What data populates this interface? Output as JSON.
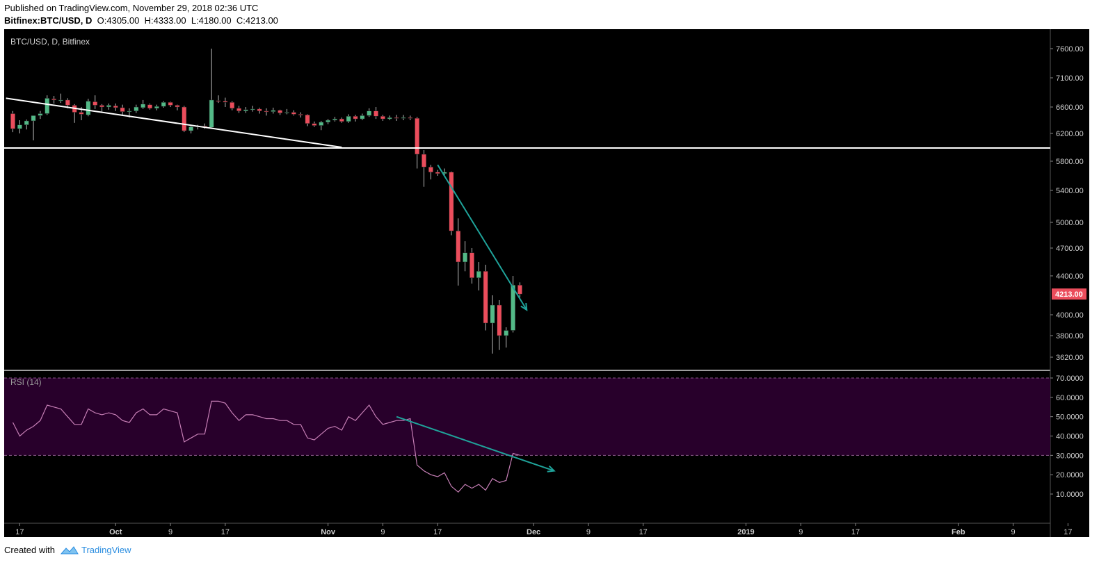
{
  "header": {
    "published": "Published on TradingView.com, November 29, 2018 02:36 UTC",
    "symbol": "Bitfinex:BTC/USD, D",
    "o_label": "O:",
    "o_value": "4305.00",
    "h_label": "H:",
    "h_value": "4333.00",
    "l_label": "L:",
    "l_value": "4180.00",
    "c_label": "C:",
    "c_value": "4213.00"
  },
  "footer": {
    "created_with": "Created with",
    "brand": "TradingView"
  },
  "colors": {
    "background": "#000000",
    "up": "#53b987",
    "down": "#eb4d5c",
    "rsi_band": "#28002b",
    "rsi_line": "#c77fb6",
    "trend_teal": "#1fa39a",
    "price_tag": "#eb4d5c",
    "axis_text": "#d0d0d0"
  },
  "chart_data": [
    {
      "type": "candlestick",
      "title": "BTC/USD, D, Bitfinex",
      "y_ticks": [
        "7600.00",
        "7100.00",
        "6600.00",
        "6200.00",
        "5800.00",
        "5400.00",
        "5000.00",
        "4700.00",
        "4400.00",
        "4000.00",
        "3800.00",
        "3620.00"
      ],
      "ylim": [
        3500,
        7750
      ],
      "last_price": "4213.00",
      "x_ticks": [
        "17",
        "Oct",
        "9",
        "17",
        "Nov",
        "9",
        "17",
        "Dec",
        "9",
        "17",
        "2019",
        "9",
        "17",
        "Feb",
        "9",
        "17"
      ],
      "candles": [
        {
          "date": "2018-09-16",
          "o": 6500,
          "h": 6540,
          "l": 6220,
          "c": 6270
        },
        {
          "date": "2018-09-17",
          "o": 6270,
          "h": 6400,
          "l": 6200,
          "c": 6330
        },
        {
          "date": "2018-09-18",
          "o": 6330,
          "h": 6410,
          "l": 6260,
          "c": 6390
        },
        {
          "date": "2018-09-19",
          "o": 6390,
          "h": 6440,
          "l": 6100,
          "c": 6470
        },
        {
          "date": "2018-09-20",
          "o": 6470,
          "h": 6540,
          "l": 6420,
          "c": 6500
        },
        {
          "date": "2018-09-21",
          "o": 6500,
          "h": 6800,
          "l": 6480,
          "c": 6750
        },
        {
          "date": "2018-09-22",
          "o": 6740,
          "h": 6790,
          "l": 6660,
          "c": 6720
        },
        {
          "date": "2018-09-23",
          "o": 6710,
          "h": 6830,
          "l": 6670,
          "c": 6720
        },
        {
          "date": "2018-09-24",
          "o": 6720,
          "h": 6750,
          "l": 6580,
          "c": 6630
        },
        {
          "date": "2018-09-25",
          "o": 6630,
          "h": 6650,
          "l": 6360,
          "c": 6520
        },
        {
          "date": "2018-09-26",
          "o": 6520,
          "h": 6600,
          "l": 6400,
          "c": 6490
        },
        {
          "date": "2018-09-27",
          "o": 6480,
          "h": 6740,
          "l": 6460,
          "c": 6700
        },
        {
          "date": "2018-09-28",
          "o": 6690,
          "h": 6800,
          "l": 6570,
          "c": 6630
        },
        {
          "date": "2018-09-29",
          "o": 6630,
          "h": 6650,
          "l": 6530,
          "c": 6600
        },
        {
          "date": "2018-09-30",
          "o": 6600,
          "h": 6660,
          "l": 6560,
          "c": 6630
        },
        {
          "date": "2018-10-01",
          "o": 6620,
          "h": 6660,
          "l": 6540,
          "c": 6590
        },
        {
          "date": "2018-10-02",
          "o": 6590,
          "h": 6640,
          "l": 6480,
          "c": 6530
        },
        {
          "date": "2018-10-03",
          "o": 6530,
          "h": 6580,
          "l": 6440,
          "c": 6540
        },
        {
          "date": "2018-10-04",
          "o": 6540,
          "h": 6640,
          "l": 6510,
          "c": 6600
        },
        {
          "date": "2018-10-05",
          "o": 6590,
          "h": 6720,
          "l": 6570,
          "c": 6650
        },
        {
          "date": "2018-10-06",
          "o": 6640,
          "h": 6660,
          "l": 6560,
          "c": 6580
        },
        {
          "date": "2018-10-07",
          "o": 6580,
          "h": 6640,
          "l": 6550,
          "c": 6610
        },
        {
          "date": "2018-10-08",
          "o": 6610,
          "h": 6700,
          "l": 6590,
          "c": 6680
        },
        {
          "date": "2018-10-09",
          "o": 6680,
          "h": 6690,
          "l": 6600,
          "c": 6630
        },
        {
          "date": "2018-10-10",
          "o": 6630,
          "h": 6640,
          "l": 6550,
          "c": 6600
        },
        {
          "date": "2018-10-11",
          "o": 6600,
          "h": 6620,
          "l": 6220,
          "c": 6240
        },
        {
          "date": "2018-10-12",
          "o": 6240,
          "h": 6320,
          "l": 6200,
          "c": 6300
        },
        {
          "date": "2018-10-13",
          "o": 6300,
          "h": 6330,
          "l": 6260,
          "c": 6310
        },
        {
          "date": "2018-10-14",
          "o": 6310,
          "h": 6350,
          "l": 6270,
          "c": 6290
        },
        {
          "date": "2018-10-15",
          "o": 6290,
          "h": 7600,
          "l": 6280,
          "c": 6720
        },
        {
          "date": "2018-10-16",
          "o": 6710,
          "h": 6800,
          "l": 6670,
          "c": 6700
        },
        {
          "date": "2018-10-17",
          "o": 6700,
          "h": 6760,
          "l": 6600,
          "c": 6680
        },
        {
          "date": "2018-10-18",
          "o": 6680,
          "h": 6700,
          "l": 6550,
          "c": 6580
        },
        {
          "date": "2018-10-19",
          "o": 6580,
          "h": 6620,
          "l": 6510,
          "c": 6540
        },
        {
          "date": "2018-10-20",
          "o": 6540,
          "h": 6600,
          "l": 6510,
          "c": 6560
        },
        {
          "date": "2018-10-21",
          "o": 6560,
          "h": 6620,
          "l": 6530,
          "c": 6570
        },
        {
          "date": "2018-10-22",
          "o": 6570,
          "h": 6590,
          "l": 6500,
          "c": 6540
        },
        {
          "date": "2018-10-23",
          "o": 6540,
          "h": 6580,
          "l": 6470,
          "c": 6530
        },
        {
          "date": "2018-10-24",
          "o": 6530,
          "h": 6590,
          "l": 6500,
          "c": 6550
        },
        {
          "date": "2018-10-25",
          "o": 6550,
          "h": 6560,
          "l": 6480,
          "c": 6510
        },
        {
          "date": "2018-10-26",
          "o": 6510,
          "h": 6570,
          "l": 6490,
          "c": 6520
        },
        {
          "date": "2018-10-27",
          "o": 6520,
          "h": 6550,
          "l": 6470,
          "c": 6490
        },
        {
          "date": "2018-10-28",
          "o": 6490,
          "h": 6520,
          "l": 6440,
          "c": 6480
        },
        {
          "date": "2018-10-29",
          "o": 6480,
          "h": 6490,
          "l": 6310,
          "c": 6350
        },
        {
          "date": "2018-10-30",
          "o": 6350,
          "h": 6380,
          "l": 6300,
          "c": 6320
        },
        {
          "date": "2018-10-31",
          "o": 6320,
          "h": 6390,
          "l": 6250,
          "c": 6370
        },
        {
          "date": "2018-11-01",
          "o": 6370,
          "h": 6420,
          "l": 6340,
          "c": 6400
        },
        {
          "date": "2018-11-02",
          "o": 6400,
          "h": 6450,
          "l": 6380,
          "c": 6420
        },
        {
          "date": "2018-11-03",
          "o": 6420,
          "h": 6440,
          "l": 6360,
          "c": 6380
        },
        {
          "date": "2018-11-04",
          "o": 6380,
          "h": 6490,
          "l": 6360,
          "c": 6460
        },
        {
          "date": "2018-11-05",
          "o": 6460,
          "h": 6480,
          "l": 6380,
          "c": 6420
        },
        {
          "date": "2018-11-06",
          "o": 6420,
          "h": 6500,
          "l": 6400,
          "c": 6470
        },
        {
          "date": "2018-11-07",
          "o": 6470,
          "h": 6580,
          "l": 6450,
          "c": 6540
        },
        {
          "date": "2018-11-08",
          "o": 6540,
          "h": 6600,
          "l": 6420,
          "c": 6460
        },
        {
          "date": "2018-11-09",
          "o": 6460,
          "h": 6480,
          "l": 6390,
          "c": 6420
        },
        {
          "date": "2018-11-10",
          "o": 6420,
          "h": 6470,
          "l": 6400,
          "c": 6440
        },
        {
          "date": "2018-11-11",
          "o": 6440,
          "h": 6480,
          "l": 6390,
          "c": 6430
        },
        {
          "date": "2018-11-12",
          "o": 6430,
          "h": 6480,
          "l": 6400,
          "c": 6440
        },
        {
          "date": "2018-11-13",
          "o": 6440,
          "h": 6470,
          "l": 6400,
          "c": 6430
        },
        {
          "date": "2018-11-14",
          "o": 6430,
          "h": 6450,
          "l": 5700,
          "c": 5900
        },
        {
          "date": "2018-11-15",
          "o": 5900,
          "h": 5960,
          "l": 5450,
          "c": 5720
        },
        {
          "date": "2018-11-16",
          "o": 5720,
          "h": 5750,
          "l": 5550,
          "c": 5650
        },
        {
          "date": "2018-11-17",
          "o": 5650,
          "h": 5680,
          "l": 5600,
          "c": 5630
        },
        {
          "date": "2018-11-18",
          "o": 5630,
          "h": 5700,
          "l": 5610,
          "c": 5650
        },
        {
          "date": "2018-11-19",
          "o": 5650,
          "h": 5660,
          "l": 4850,
          "c": 4900
        },
        {
          "date": "2018-11-20",
          "o": 4900,
          "h": 5050,
          "l": 4300,
          "c": 4550
        },
        {
          "date": "2018-11-21",
          "o": 4550,
          "h": 4780,
          "l": 4450,
          "c": 4650
        },
        {
          "date": "2018-11-22",
          "o": 4650,
          "h": 4700,
          "l": 4320,
          "c": 4380
        },
        {
          "date": "2018-11-23",
          "o": 4380,
          "h": 4550,
          "l": 4250,
          "c": 4450
        },
        {
          "date": "2018-11-24",
          "o": 4450,
          "h": 4520,
          "l": 3850,
          "c": 3920
        },
        {
          "date": "2018-11-25",
          "o": 3920,
          "h": 4200,
          "l": 3650,
          "c": 4100
        },
        {
          "date": "2018-11-26",
          "o": 4100,
          "h": 4150,
          "l": 3680,
          "c": 3800
        },
        {
          "date": "2018-11-27",
          "o": 3800,
          "h": 3880,
          "l": 3700,
          "c": 3850
        },
        {
          "date": "2018-11-28",
          "o": 3850,
          "h": 4400,
          "l": 3830,
          "c": 4305
        },
        {
          "date": "2018-11-29",
          "o": 4305,
          "h": 4333,
          "l": 4180,
          "c": 4213
        }
      ]
    },
    {
      "type": "line",
      "title": "RSI (14)",
      "y_ticks": [
        "70.0000",
        "60.0000",
        "50.0000",
        "40.0000",
        "30.0000",
        "20.0000",
        "10.0000"
      ],
      "ylim": [
        7,
        73
      ],
      "band": [
        30,
        70
      ],
      "values": [
        47,
        40,
        43,
        45,
        48,
        56,
        55,
        54,
        50,
        46,
        46,
        54,
        52,
        51,
        52,
        51,
        48,
        47,
        52,
        54,
        51,
        51,
        54,
        53,
        52,
        37,
        39,
        41,
        41,
        58,
        58,
        57,
        52,
        48,
        51,
        51,
        50,
        49,
        49,
        48,
        48,
        46,
        46,
        39,
        38,
        41,
        44,
        45,
        43,
        50,
        48,
        52,
        56,
        50,
        46,
        47,
        48,
        48,
        49,
        25,
        22,
        20,
        19,
        21,
        14,
        11,
        15,
        13,
        15,
        12,
        18,
        16,
        17,
        31,
        30
      ]
    }
  ],
  "drawings": [
    {
      "panel": "price",
      "type": "line",
      "from": {
        "date": "2018-09-15",
        "v": 6750
      },
      "to": {
        "date": "2018-11-03",
        "v": 6000
      }
    },
    {
      "panel": "price",
      "type": "hline",
      "v": 5990
    },
    {
      "panel": "price",
      "type": "arrow",
      "from": {
        "date": "2018-11-17",
        "v": 5750
      },
      "to": {
        "date": "2018-11-30",
        "v": 4050
      }
    },
    {
      "panel": "rsi",
      "type": "arrow",
      "from": {
        "date": "2018-11-11",
        "v": 50
      },
      "to": {
        "date": "2018-12-04",
        "v": 22
      }
    }
  ]
}
